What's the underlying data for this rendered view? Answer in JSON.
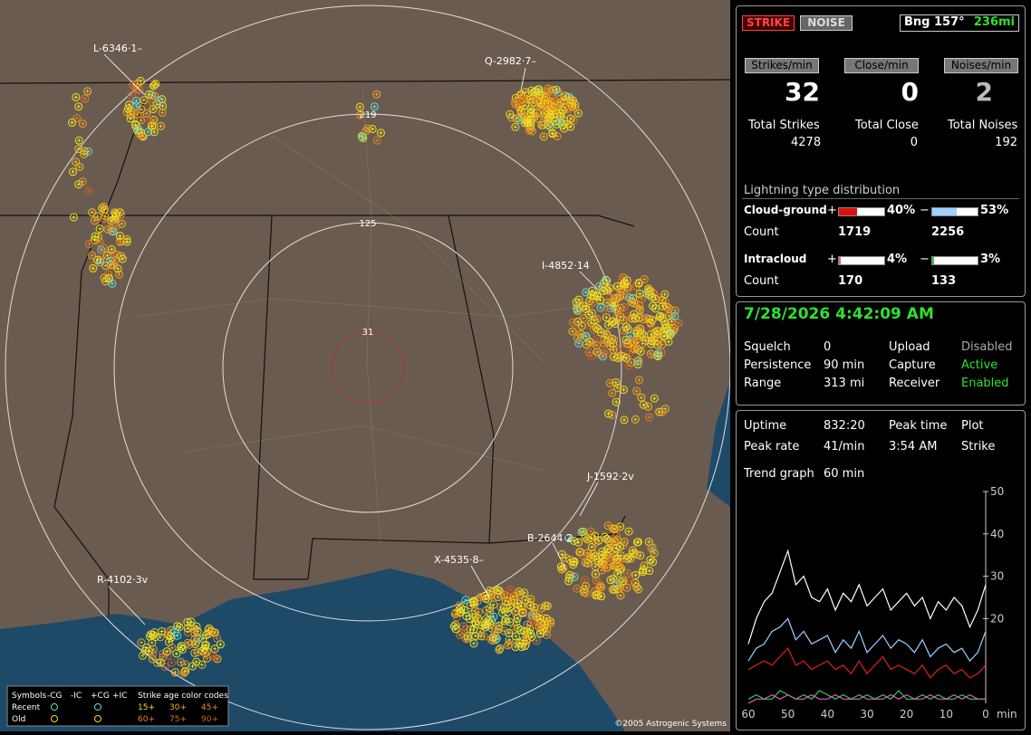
{
  "header": {
    "strike_button": "STRIKE",
    "noise_button": "NOISE",
    "bearing": "Bng 157°",
    "distance": "236mi"
  },
  "rates": [
    {
      "label": "Strikes/min",
      "value": 32
    },
    {
      "label": "Close/min",
      "value": 0
    },
    {
      "label": "Noises/min",
      "value": 2
    }
  ],
  "totals": [
    {
      "label": "Total Strikes",
      "value": 4278
    },
    {
      "label": "Total Close",
      "value": 0
    },
    {
      "label": "Total Noises",
      "value": 192
    }
  ],
  "distribution": {
    "title": "Lightning type distribution",
    "count_label": "Count",
    "rows": [
      {
        "label": "Cloud-ground",
        "pos_sign": "+",
        "pos": {
          "value": 40,
          "label": "40%"
        },
        "neg_sign": "−",
        "neg": {
          "value": 53,
          "label": "53%"
        },
        "pos_count": 1719,
        "neg_count": 2256
      },
      {
        "label": "Intracloud",
        "pos_sign": "+",
        "pos": {
          "value": 4,
          "label": "4%"
        },
        "neg_sign": "−",
        "neg": {
          "value": 3,
          "label": "3%"
        },
        "pos_count": 170,
        "neg_count": 133
      }
    ]
  },
  "status": {
    "datetime": "7/28/2026 4:42:09 AM",
    "settings": [
      [
        "Squelch",
        0,
        "Upload",
        "Disabled"
      ],
      [
        "Persistence",
        "90 min",
        "Capture",
        "Active"
      ],
      [
        "Range",
        "313 mi",
        "Receiver",
        "Enabled"
      ]
    ]
  },
  "stats": [
    [
      "Uptime",
      "832:20",
      "Peak time",
      "3:54 AM",
      "Plot"
    ],
    [
      "Peak rate",
      "41/min",
      "3:54 AM_",
      "",
      "Strike"
    ]
  ],
  "stats2": {
    "uptime_label": "Uptime",
    "uptime": "832:20",
    "peak_time_label": "Peak time",
    "peak_time": "3:54 AM",
    "plot_label": "Plot",
    "peak_rate_label": "Peak rate",
    "peak_rate": "41/min",
    "plot": "Strike",
    "trend_label": "Trend graph",
    "trend_span": "60 min"
  },
  "map": {
    "ring_labels": [
      31,
      125,
      219
    ],
    "cells": [
      "L-6346·1–",
      "Q-2982·7–",
      "I-4852·14",
      "J-1592·2v",
      "B-2644·2",
      "X-4535·8–",
      "R-4102·3v"
    ],
    "legend": {
      "symbols": "Symbols",
      "types": [
        "-CG",
        "-IC",
        "+CG",
        "+IC"
      ],
      "age_title": "Strike age color codes",
      "recent": "Recent",
      "old": "Old",
      "recent_ages": [
        "15+",
        "30+",
        "45+"
      ],
      "old_ages": [
        "60+",
        "75+",
        "90+"
      ]
    },
    "copyright": "©2005 Astrogenic Systems"
  },
  "chart_data": {
    "type": "line",
    "x": [
      60,
      58,
      56,
      54,
      52,
      50,
      48,
      46,
      44,
      42,
      40,
      38,
      36,
      34,
      32,
      30,
      28,
      26,
      24,
      22,
      20,
      18,
      16,
      14,
      12,
      10,
      8,
      6,
      4,
      2,
      0
    ],
    "xlim": [
      60,
      0
    ],
    "ylim": [
      0,
      50
    ],
    "xticks": [
      60,
      50,
      40,
      30,
      20,
      10,
      0
    ],
    "yticks": [
      20,
      30,
      40,
      50
    ],
    "x_unit": "min",
    "series": [
      {
        "color": "#ffffff",
        "values": [
          14,
          20,
          24,
          26,
          31,
          36,
          28,
          30,
          25,
          24,
          27,
          22,
          26,
          24,
          28,
          23,
          25,
          27,
          22,
          24,
          26,
          23,
          25,
          20,
          24,
          22,
          25,
          23,
          18,
          22,
          28
        ]
      },
      {
        "color": "#9fd0ff",
        "values": [
          10,
          13,
          14,
          17,
          18,
          20,
          15,
          17,
          14,
          15,
          16,
          12,
          15,
          13,
          17,
          12,
          14,
          16,
          13,
          15,
          14,
          12,
          15,
          11,
          13,
          14,
          12,
          13,
          10,
          12,
          17
        ]
      },
      {
        "color": "#e02020",
        "values": [
          8,
          9,
          10,
          9,
          11,
          13,
          9,
          10,
          8,
          9,
          10,
          8,
          9,
          7,
          10,
          7,
          9,
          11,
          8,
          9,
          8,
          7,
          9,
          6,
          8,
          9,
          7,
          8,
          6,
          7,
          9
        ]
      },
      {
        "color": "#30d050",
        "values": [
          1,
          2,
          1,
          1,
          3,
          2,
          1,
          2,
          1,
          3,
          2,
          1,
          2,
          1,
          1,
          2,
          1,
          2,
          1,
          3,
          1,
          1,
          2,
          1,
          2,
          1,
          1,
          2,
          1,
          1,
          1
        ]
      },
      {
        "color": "#e060c0",
        "values": [
          0,
          1,
          1,
          2,
          1,
          2,
          1,
          1,
          2,
          1,
          1,
          2,
          1,
          1,
          2,
          1,
          1,
          1,
          2,
          1,
          2,
          1,
          1,
          2,
          1,
          1,
          2,
          1,
          2,
          1,
          1
        ]
      }
    ]
  }
}
